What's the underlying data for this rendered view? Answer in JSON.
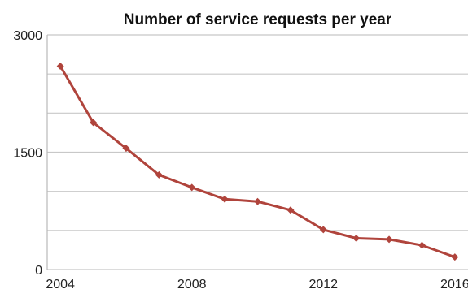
{
  "chart_data": {
    "type": "line",
    "title": "Number of service requests per year",
    "xlabel": "",
    "ylabel": "",
    "x": [
      2004,
      2005,
      2006,
      2007,
      2008,
      2009,
      2010,
      2011,
      2012,
      2013,
      2014,
      2015,
      2016
    ],
    "series": [
      {
        "values": [
          2600,
          1880,
          1550,
          1210,
          1050,
          900,
          870,
          760,
          510,
          400,
          385,
          310,
          160
        ]
      }
    ],
    "xlim": [
      2003.6,
      2016.4
    ],
    "ylim": [
      0,
      3000
    ],
    "x_ticks": [
      2004,
      2008,
      2012,
      2016
    ],
    "y_ticks": [
      0,
      1500,
      3000
    ],
    "y_gridlines": [
      0,
      500,
      1000,
      1500,
      2000,
      2500,
      3000
    ],
    "grid": true,
    "legend": "none",
    "colors": {
      "series": "#b0443c",
      "grid": "#c8c8c8",
      "axis": "#b9b9b9"
    }
  }
}
